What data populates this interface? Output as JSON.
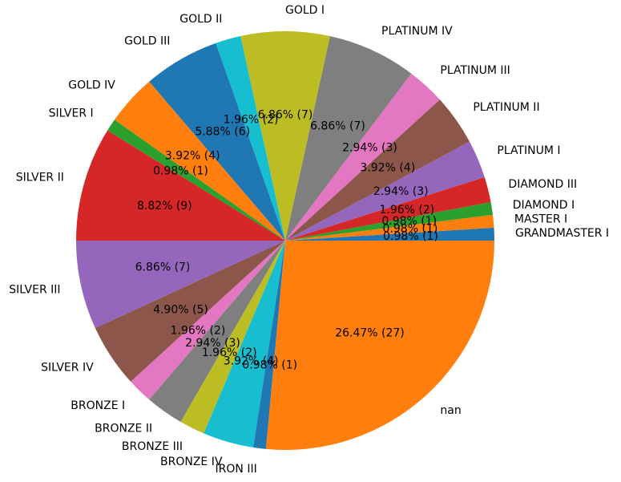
{
  "chart_data": {
    "type": "pie",
    "title": "",
    "start_angle_deg": 0,
    "direction": "counterclockwise",
    "label_format": "percent (count)",
    "slices": [
      {
        "label": "GRANDMASTER I",
        "value": 1,
        "pct": "0.98% (1)",
        "color": "#1f77b4"
      },
      {
        "label": "MASTER I",
        "value": 1,
        "pct": "0.98% (1)",
        "color": "#ff7f0e"
      },
      {
        "label": "DIAMOND I",
        "value": 1,
        "pct": "0.98% (1)",
        "color": "#2ca02c"
      },
      {
        "label": "DIAMOND III",
        "value": 2,
        "pct": "1.96% (2)",
        "color": "#d62728"
      },
      {
        "label": "PLATINUM I",
        "value": 3,
        "pct": "2.94% (3)",
        "color": "#9467bd"
      },
      {
        "label": "PLATINUM II",
        "value": 4,
        "pct": "3.92% (4)",
        "color": "#8c564b"
      },
      {
        "label": "PLATINUM III",
        "value": 3,
        "pct": "2.94% (3)",
        "color": "#e377c2"
      },
      {
        "label": "PLATINUM IV",
        "value": 7,
        "pct": "6.86% (7)",
        "color": "#7f7f7f"
      },
      {
        "label": "GOLD I",
        "value": 7,
        "pct": "6.86% (7)",
        "color": "#bcbd22"
      },
      {
        "label": "GOLD II",
        "value": 2,
        "pct": "1.96% (2)",
        "color": "#17becf"
      },
      {
        "label": "GOLD III",
        "value": 6,
        "pct": "5.88% (6)",
        "color": "#1f77b4"
      },
      {
        "label": "GOLD IV",
        "value": 4,
        "pct": "3.92% (4)",
        "color": "#ff7f0e"
      },
      {
        "label": "SILVER I",
        "value": 1,
        "pct": "0.98% (1)",
        "color": "#2ca02c"
      },
      {
        "label": "SILVER II",
        "value": 9,
        "pct": "8.82% (9)",
        "color": "#d62728"
      },
      {
        "label": "SILVER III",
        "value": 7,
        "pct": "6.86% (7)",
        "color": "#9467bd"
      },
      {
        "label": "SILVER IV",
        "value": 5,
        "pct": "4.90% (5)",
        "color": "#8c564b"
      },
      {
        "label": "BRONZE I",
        "value": 2,
        "pct": "1.96% (2)",
        "color": "#e377c2"
      },
      {
        "label": "BRONZE II",
        "value": 3,
        "pct": "2.94% (3)",
        "color": "#7f7f7f"
      },
      {
        "label": "BRONZE III",
        "value": 2,
        "pct": "1.96% (2)",
        "color": "#bcbd22"
      },
      {
        "label": "BRONZE IV",
        "value": 4,
        "pct": "3.92% (4)",
        "color": "#17becf"
      },
      {
        "label": "IRON III",
        "value": 1,
        "pct": "0.98% (1)",
        "color": "#1f77b4"
      },
      {
        "label": "nan",
        "value": 27,
        "pct": "26.47% (27)",
        "color": "#ff7f0e"
      }
    ]
  }
}
